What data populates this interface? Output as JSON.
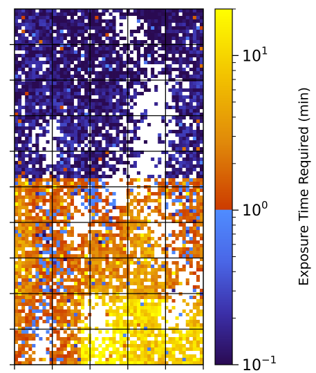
{
  "chart_data": {
    "type": "heatmap",
    "title": "",
    "xlabel": "",
    "ylabel": "",
    "grid": true,
    "grid_color": "#000000",
    "missing_color": "#ffffff",
    "heatmap_cells": {
      "columns": 54,
      "rows": 103
    },
    "map_grid": {
      "columns": 5,
      "rows": 10
    },
    "x_tick_count": 6,
    "y_tick_count": 10,
    "colorbar": {
      "label": "Exposure Time Required (min)",
      "scale": "log",
      "range": [
        0.1,
        20
      ],
      "threshold": 1,
      "below_threshold_colors": [
        "#2a0a52",
        "#3b2fa8",
        "#4a66e6",
        "#4f8cff"
      ],
      "above_threshold_colors": [
        "#cc3a00",
        "#e0880a",
        "#f2c200",
        "#ffff00"
      ],
      "tick_labels": [
        {
          "value": 0.1,
          "base": "10",
          "exp": "−1"
        },
        {
          "value": 1,
          "base": "10",
          "exp": "0"
        },
        {
          "value": 10,
          "base": "10",
          "exp": "1"
        }
      ],
      "minor_ticks": [
        0.2,
        0.3,
        0.4,
        0.5,
        0.6,
        0.7,
        0.8,
        0.9,
        2,
        3,
        4,
        5,
        6,
        7,
        8,
        9,
        20
      ]
    },
    "regions": [
      {
        "description": "low",
        "cx": 0.5,
        "cy": 0.2,
        "level": 0.15
      },
      {
        "description": "high",
        "cx": 0.3,
        "cy": 0.67,
        "level": 3.5
      },
      {
        "description": "veryhigh",
        "cx": 0.6,
        "cy": 0.94,
        "level": 15
      }
    ]
  }
}
